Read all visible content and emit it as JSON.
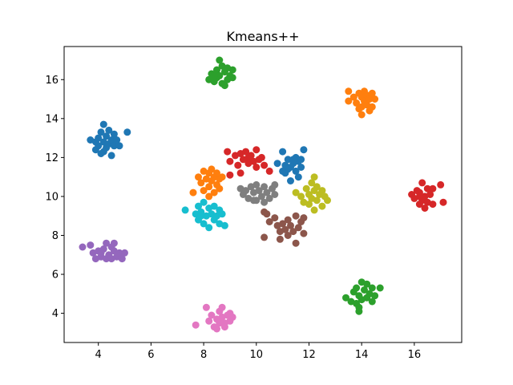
{
  "chart_data": {
    "type": "scatter",
    "title": "Kmeans++",
    "xlabel": "",
    "ylabel": "",
    "xlim": [
      2.7,
      17.8
    ],
    "ylim": [
      2.5,
      17.7
    ],
    "xticks": [
      4,
      6,
      8,
      10,
      12,
      14,
      16
    ],
    "yticks": [
      4,
      6,
      8,
      10,
      12,
      14,
      16
    ],
    "grid": false,
    "legend": "none",
    "series": [
      {
        "color": "#1f77b4",
        "points": [
          [
            3.7,
            12.9
          ],
          [
            3.9,
            12.4
          ],
          [
            4.0,
            13.0
          ],
          [
            4.0,
            12.6
          ],
          [
            4.1,
            13.3
          ],
          [
            4.1,
            12.2
          ],
          [
            4.2,
            13.7
          ],
          [
            4.2,
            12.8
          ],
          [
            4.3,
            12.5
          ],
          [
            4.3,
            13.1
          ],
          [
            4.4,
            12.7
          ],
          [
            4.4,
            13.4
          ],
          [
            4.5,
            12.1
          ],
          [
            4.5,
            12.9
          ],
          [
            4.6,
            13.2
          ],
          [
            4.6,
            12.6
          ],
          [
            4.7,
            12.9
          ],
          [
            4.8,
            12.6
          ],
          [
            4.2,
            12.3
          ],
          [
            3.9,
            12.8
          ],
          [
            5.1,
            13.3
          ]
        ]
      },
      {
        "color": "#1f77b4",
        "points": [
          [
            10.8,
            11.7
          ],
          [
            11.0,
            12.3
          ],
          [
            11.1,
            11.6
          ],
          [
            11.1,
            11.2
          ],
          [
            11.2,
            11.9
          ],
          [
            11.3,
            10.8
          ],
          [
            11.3,
            11.5
          ],
          [
            11.4,
            11.7
          ],
          [
            11.5,
            12.0
          ],
          [
            11.5,
            11.3
          ],
          [
            11.6,
            11.8
          ],
          [
            11.6,
            11.0
          ],
          [
            11.7,
            11.5
          ],
          [
            11.8,
            12.4
          ],
          [
            11.2,
            11.4
          ],
          [
            11.4,
            11.9
          ],
          [
            11.7,
            11.9
          ],
          [
            11.0,
            11.3
          ]
        ]
      },
      {
        "color": "#ff7f0e",
        "points": [
          [
            13.5,
            15.4
          ],
          [
            13.5,
            14.9
          ],
          [
            13.7,
            15.1
          ],
          [
            13.8,
            14.8
          ],
          [
            13.9,
            15.3
          ],
          [
            14.0,
            14.6
          ],
          [
            14.0,
            15.1
          ],
          [
            14.0,
            14.2
          ],
          [
            14.1,
            15.4
          ],
          [
            14.1,
            14.9
          ],
          [
            14.2,
            15.2
          ],
          [
            14.2,
            14.7
          ],
          [
            14.3,
            15.0
          ],
          [
            14.4,
            14.6
          ],
          [
            14.4,
            15.3
          ],
          [
            14.5,
            15.0
          ],
          [
            14.3,
            14.4
          ],
          [
            13.9,
            14.5
          ]
        ]
      },
      {
        "color": "#ff7f0e",
        "points": [
          [
            7.8,
            11.0
          ],
          [
            7.9,
            10.7
          ],
          [
            8.0,
            11.3
          ],
          [
            8.0,
            10.3
          ],
          [
            8.1,
            10.9
          ],
          [
            8.2,
            11.2
          ],
          [
            8.2,
            10.5
          ],
          [
            8.3,
            10.8
          ],
          [
            8.3,
            11.4
          ],
          [
            8.4,
            10.2
          ],
          [
            8.4,
            11.0
          ],
          [
            8.5,
            10.6
          ],
          [
            8.5,
            11.2
          ],
          [
            8.6,
            10.9
          ],
          [
            8.6,
            10.4
          ],
          [
            7.6,
            10.2
          ],
          [
            8.2,
            10.0
          ],
          [
            8.7,
            11.0
          ]
        ]
      },
      {
        "color": "#2ca02c",
        "points": [
          [
            8.2,
            16.0
          ],
          [
            8.3,
            16.3
          ],
          [
            8.4,
            15.9
          ],
          [
            8.5,
            16.5
          ],
          [
            8.5,
            16.1
          ],
          [
            8.6,
            17.0
          ],
          [
            8.6,
            16.2
          ],
          [
            8.7,
            16.7
          ],
          [
            8.7,
            15.8
          ],
          [
            8.8,
            16.4
          ],
          [
            8.9,
            16.0
          ],
          [
            8.9,
            16.6
          ],
          [
            9.0,
            16.2
          ],
          [
            9.1,
            16.5
          ],
          [
            8.8,
            15.7
          ],
          [
            8.4,
            16.2
          ],
          [
            9.1,
            16.1
          ]
        ]
      },
      {
        "color": "#2ca02c",
        "points": [
          [
            13.4,
            4.8
          ],
          [
            13.6,
            4.6
          ],
          [
            13.7,
            5.1
          ],
          [
            13.8,
            4.5
          ],
          [
            13.8,
            5.3
          ],
          [
            13.9,
            4.9
          ],
          [
            13.9,
            4.1
          ],
          [
            14.0,
            5.6
          ],
          [
            14.0,
            4.7
          ],
          [
            14.1,
            5.2
          ],
          [
            14.2,
            4.8
          ],
          [
            14.2,
            5.5
          ],
          [
            14.3,
            5.0
          ],
          [
            14.4,
            4.6
          ],
          [
            14.4,
            5.3
          ],
          [
            14.5,
            4.9
          ],
          [
            14.7,
            5.3
          ],
          [
            13.9,
            4.3
          ]
        ]
      },
      {
        "color": "#d62728",
        "points": [
          [
            8.9,
            12.3
          ],
          [
            9.0,
            11.8
          ],
          [
            9.2,
            12.1
          ],
          [
            9.3,
            11.6
          ],
          [
            9.4,
            12.2
          ],
          [
            9.4,
            11.2
          ],
          [
            9.5,
            11.9
          ],
          [
            9.6,
            12.3
          ],
          [
            9.7,
            11.7
          ],
          [
            9.8,
            12.1
          ],
          [
            9.9,
            11.8
          ],
          [
            10.0,
            12.4
          ],
          [
            10.0,
            11.5
          ],
          [
            10.1,
            11.9
          ],
          [
            10.2,
            12.0
          ],
          [
            10.3,
            11.6
          ],
          [
            9.0,
            11.1
          ],
          [
            10.5,
            11.3
          ],
          [
            9.7,
            12.0
          ]
        ]
      },
      {
        "color": "#d62728",
        "points": [
          [
            15.9,
            10.1
          ],
          [
            16.0,
            9.9
          ],
          [
            16.1,
            10.3
          ],
          [
            16.2,
            9.6
          ],
          [
            16.2,
            10.2
          ],
          [
            16.3,
            10.7
          ],
          [
            16.3,
            9.8
          ],
          [
            16.4,
            10.0
          ],
          [
            16.4,
            9.4
          ],
          [
            16.5,
            10.4
          ],
          [
            16.5,
            9.7
          ],
          [
            16.6,
            10.1
          ],
          [
            16.7,
            9.6
          ],
          [
            16.7,
            10.4
          ],
          [
            17.0,
            10.6
          ],
          [
            17.1,
            9.7
          ],
          [
            16.2,
            10.0
          ]
        ]
      },
      {
        "color": "#9467bd",
        "points": [
          [
            3.4,
            7.4
          ],
          [
            3.7,
            7.5
          ],
          [
            3.8,
            7.1
          ],
          [
            3.9,
            6.8
          ],
          [
            4.0,
            7.2
          ],
          [
            4.1,
            6.9
          ],
          [
            4.2,
            7.3
          ],
          [
            4.3,
            7.6
          ],
          [
            4.3,
            6.8
          ],
          [
            4.4,
            7.0
          ],
          [
            4.5,
            7.4
          ],
          [
            4.5,
            6.8
          ],
          [
            4.6,
            7.2
          ],
          [
            4.6,
            7.6
          ],
          [
            4.7,
            6.9
          ],
          [
            4.8,
            7.1
          ],
          [
            4.9,
            6.8
          ],
          [
            5.0,
            7.1
          ],
          [
            4.1,
            7.1
          ]
        ]
      },
      {
        "color": "#8c564b",
        "points": [
          [
            10.3,
            9.2
          ],
          [
            10.4,
            9.1
          ],
          [
            10.3,
            7.9
          ],
          [
            10.5,
            8.7
          ],
          [
            10.7,
            8.9
          ],
          [
            10.8,
            8.5
          ],
          [
            10.9,
            8.2
          ],
          [
            10.9,
            7.8
          ],
          [
            11.0,
            8.6
          ],
          [
            11.1,
            8.3
          ],
          [
            11.2,
            8.8
          ],
          [
            11.2,
            8.0
          ],
          [
            11.3,
            8.5
          ],
          [
            11.4,
            8.2
          ],
          [
            11.5,
            9.0
          ],
          [
            11.5,
            7.6
          ],
          [
            11.6,
            8.4
          ],
          [
            11.7,
            8.7
          ],
          [
            11.8,
            8.1
          ],
          [
            11.8,
            8.9
          ]
        ]
      },
      {
        "color": "#e377c2",
        "points": [
          [
            7.7,
            3.4
          ],
          [
            8.1,
            4.3
          ],
          [
            8.2,
            3.6
          ],
          [
            8.3,
            3.9
          ],
          [
            8.4,
            3.3
          ],
          [
            8.5,
            3.7
          ],
          [
            8.6,
            4.1
          ],
          [
            8.6,
            3.5
          ],
          [
            8.7,
            3.8
          ],
          [
            8.7,
            4.3
          ],
          [
            8.8,
            3.5
          ],
          [
            8.9,
            3.9
          ],
          [
            9.0,
            3.6
          ],
          [
            9.0,
            4.0
          ],
          [
            9.1,
            3.8
          ],
          [
            8.5,
            3.2
          ],
          [
            8.8,
            3.3
          ]
        ]
      },
      {
        "color": "#7f7f7f",
        "points": [
          [
            9.4,
            10.4
          ],
          [
            9.5,
            10.1
          ],
          [
            9.6,
            10.3
          ],
          [
            9.7,
            9.9
          ],
          [
            9.8,
            10.5
          ],
          [
            9.9,
            10.2
          ],
          [
            10.0,
            10.6
          ],
          [
            10.0,
            9.8
          ],
          [
            10.1,
            10.3
          ],
          [
            10.2,
            10.0
          ],
          [
            10.3,
            10.5
          ],
          [
            10.4,
            10.2
          ],
          [
            10.5,
            9.9
          ],
          [
            10.6,
            10.4
          ],
          [
            10.7,
            10.1
          ],
          [
            10.7,
            10.6
          ],
          [
            10.3,
            9.7
          ],
          [
            9.9,
            9.8
          ]
        ]
      },
      {
        "color": "#bcbd22",
        "points": [
          [
            11.5,
            10.2
          ],
          [
            11.7,
            10.0
          ],
          [
            11.8,
            9.7
          ],
          [
            11.9,
            10.4
          ],
          [
            12.0,
            10.1
          ],
          [
            12.0,
            9.6
          ],
          [
            12.1,
            10.7
          ],
          [
            12.1,
            9.9
          ],
          [
            12.2,
            10.3
          ],
          [
            12.2,
            11.0
          ],
          [
            12.3,
            9.8
          ],
          [
            12.3,
            10.5
          ],
          [
            12.4,
            10.1
          ],
          [
            12.5,
            9.5
          ],
          [
            12.5,
            10.3
          ],
          [
            12.6,
            10.0
          ],
          [
            12.7,
            9.8
          ],
          [
            12.2,
            9.3
          ]
        ]
      },
      {
        "color": "#17becf",
        "points": [
          [
            7.3,
            9.3
          ],
          [
            7.7,
            9.1
          ],
          [
            7.8,
            9.5
          ],
          [
            7.8,
            8.8
          ],
          [
            7.9,
            9.2
          ],
          [
            8.0,
            8.6
          ],
          [
            8.0,
            9.7
          ],
          [
            8.1,
            9.0
          ],
          [
            8.2,
            9.4
          ],
          [
            8.2,
            8.4
          ],
          [
            8.3,
            9.1
          ],
          [
            8.4,
            8.8
          ],
          [
            8.4,
            9.5
          ],
          [
            8.5,
            9.0
          ],
          [
            8.6,
            8.6
          ],
          [
            8.6,
            9.3
          ],
          [
            8.7,
            9.1
          ],
          [
            8.8,
            8.5
          ],
          [
            7.9,
            9.0
          ]
        ]
      }
    ]
  }
}
